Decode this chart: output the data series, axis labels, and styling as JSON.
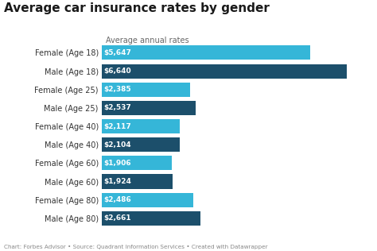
{
  "title": "Average car insurance rates by gender",
  "subtitle": "Average annual rates",
  "categories": [
    "Female (Age 18)",
    "Male (Age 18)",
    "Female (Age 25)",
    "Male (Age 25)",
    "Female (Age 40)",
    "Male (Age 40)",
    "Female (Age 60)",
    "Male (Age 60)",
    "Female (Age 80)",
    "Male (Age 80)"
  ],
  "values": [
    5647,
    6640,
    2385,
    2537,
    2117,
    2104,
    1906,
    1924,
    2486,
    2661
  ],
  "labels": [
    "$5,647",
    "$6,640",
    "$2,385",
    "$2,537",
    "$2,117",
    "$2,104",
    "$1,906",
    "$1,924",
    "$2,486",
    "$2,661"
  ],
  "colors": [
    "#35B6D8",
    "#1C4F6B",
    "#35B6D8",
    "#1C4F6B",
    "#35B6D8",
    "#1C4F6B",
    "#35B6D8",
    "#1C4F6B",
    "#35B6D8",
    "#1C4F6B"
  ],
  "background_color": "#ffffff",
  "bar_text_color": "#ffffff",
  "title_color": "#1a1a1a",
  "subtitle_color": "#666666",
  "caption": "Chart: Forbes Advisor • Source: Quadrant Information Services • Created with Datawrapper",
  "xlim": [
    0,
    7300
  ],
  "title_fontsize": 11,
  "subtitle_fontsize": 7,
  "label_fontsize": 6.5,
  "category_fontsize": 7,
  "caption_fontsize": 5.2
}
